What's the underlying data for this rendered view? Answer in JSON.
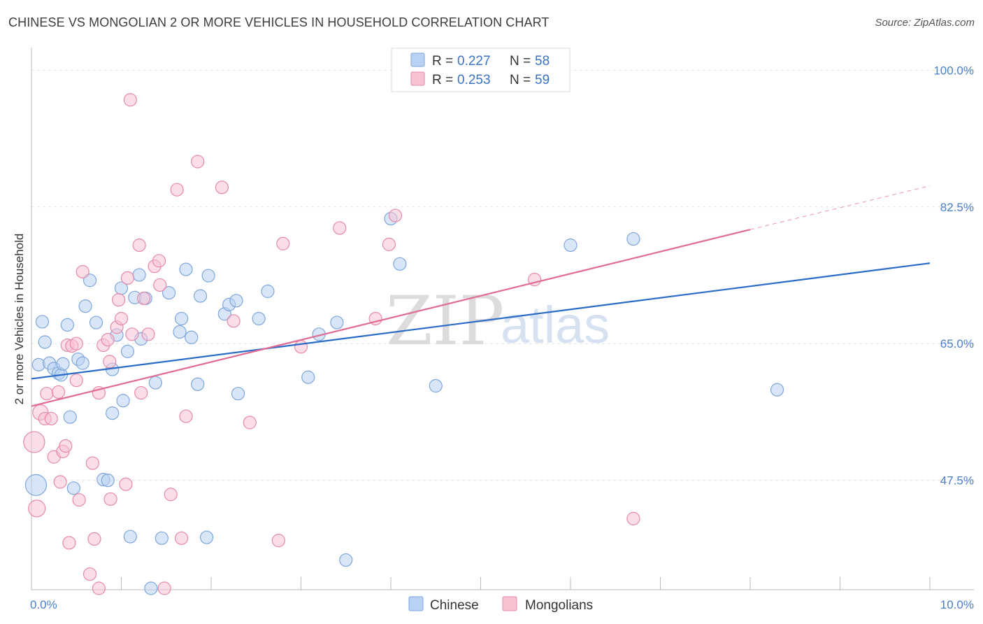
{
  "title": "CHINESE VS MONGOLIAN 2 OR MORE VEHICLES IN HOUSEHOLD CORRELATION CHART",
  "source": "Source: ZipAtlas.com",
  "watermark": {
    "zip": "ZIP",
    "atlas": "atlas"
  },
  "colors": {
    "chinese_fill": "#b9d1f2",
    "chinese_stroke": "#7ea6dc",
    "chinese_line": "#2b6bc8",
    "mongolian_fill": "#f7c3d3",
    "mongolian_stroke": "#e58aa8",
    "mongolian_line": "#e06b93",
    "grid": "#e3e3e3",
    "axis": "#bbbbbb"
  },
  "legend": {
    "rows": [
      {
        "r_label": "R = ",
        "r_value": "0.227",
        "n_label": "N = ",
        "n_value": "58"
      },
      {
        "r_label": "R = ",
        "r_value": "0.253",
        "n_label": "N = ",
        "n_value": "59"
      }
    ]
  },
  "chart_data": {
    "type": "scatter",
    "title": "CHINESE VS MONGOLIAN 2 OR MORE VEHICLES IN HOUSEHOLD CORRELATION CHART",
    "xlabel": "",
    "ylabel": "2 or more Vehicles in Household",
    "xlim": [
      0,
      10
    ],
    "ylim": [
      33.5,
      102
    ],
    "x_tick_labels": [
      "0.0%",
      "10.0%"
    ],
    "y_ticks": [
      100,
      82.5,
      65,
      47.5
    ],
    "y_tick_labels": [
      "100.0%",
      "82.5%",
      "65.0%",
      "47.5%"
    ],
    "grid": true,
    "legend_position": "top-center",
    "series": [
      {
        "name": "Chinese",
        "r": 0.227,
        "n": 58,
        "trend": {
          "x": [
            0,
            10
          ],
          "y": [
            60.5,
            75.3
          ]
        },
        "points": [
          [
            0.05,
            46.9,
            15
          ],
          [
            0.08,
            62.3,
            9
          ],
          [
            0.12,
            67.8,
            9
          ],
          [
            0.15,
            65.2,
            9
          ],
          [
            0.2,
            62.5,
            9
          ],
          [
            0.25,
            61.8,
            9
          ],
          [
            0.3,
            61.2,
            9
          ],
          [
            0.33,
            61.0,
            9
          ],
          [
            0.35,
            62.4,
            9
          ],
          [
            0.4,
            67.4,
            9
          ],
          [
            0.43,
            55.6,
            9
          ],
          [
            0.47,
            46.5,
            9
          ],
          [
            0.52,
            63.0,
            9
          ],
          [
            0.57,
            62.5,
            9
          ],
          [
            0.6,
            69.8,
            9
          ],
          [
            0.65,
            73.1,
            9
          ],
          [
            0.72,
            67.7,
            9
          ],
          [
            0.8,
            47.6,
            9
          ],
          [
            0.85,
            47.5,
            9
          ],
          [
            0.9,
            56.1,
            9
          ],
          [
            0.9,
            61.7,
            9
          ],
          [
            0.95,
            66.1,
            9
          ],
          [
            1.0,
            72.1,
            9
          ],
          [
            1.02,
            57.7,
            9
          ],
          [
            1.07,
            64.0,
            9
          ],
          [
            1.1,
            40.3,
            9
          ],
          [
            1.15,
            70.9,
            9
          ],
          [
            1.2,
            73.8,
            9
          ],
          [
            1.22,
            65.6,
            9
          ],
          [
            1.27,
            70.8,
            9
          ],
          [
            1.33,
            31.6,
            9
          ],
          [
            1.38,
            60.0,
            9
          ],
          [
            1.45,
            40.1,
            9
          ],
          [
            1.53,
            71.5,
            9
          ],
          [
            1.65,
            66.5,
            9
          ],
          [
            1.67,
            68.2,
            9
          ],
          [
            1.72,
            74.5,
            9
          ],
          [
            1.78,
            65.8,
            9
          ],
          [
            1.85,
            59.8,
            9
          ],
          [
            1.88,
            71.1,
            9
          ],
          [
            1.95,
            40.2,
            9
          ],
          [
            1.97,
            73.7,
            9
          ],
          [
            2.15,
            68.8,
            9
          ],
          [
            2.2,
            70.0,
            9
          ],
          [
            2.28,
            70.5,
            9
          ],
          [
            2.3,
            58.6,
            9
          ],
          [
            2.53,
            68.2,
            9
          ],
          [
            2.63,
            71.7,
            9
          ],
          [
            3.08,
            60.7,
            9
          ],
          [
            3.2,
            66.2,
            9
          ],
          [
            3.4,
            67.7,
            9
          ],
          [
            3.5,
            37.3,
            9
          ],
          [
            4.0,
            81.0,
            9
          ],
          [
            4.1,
            75.2,
            9
          ],
          [
            4.5,
            59.6,
            9
          ],
          [
            6.0,
            77.6,
            9
          ],
          [
            6.7,
            78.4,
            9
          ],
          [
            8.3,
            59.1,
            9
          ]
        ]
      },
      {
        "name": "Mongolians",
        "r": 0.253,
        "n": 59,
        "trend": {
          "x": [
            0,
            8.0
          ],
          "y": [
            57.0,
            79.6
          ]
        },
        "trend_dashed": {
          "x": [
            8.0,
            10
          ],
          "y": [
            79.6,
            85.2
          ]
        },
        "points": [
          [
            0.03,
            52.4,
            15
          ],
          [
            0.06,
            43.9,
            12
          ],
          [
            0.1,
            56.2,
            11
          ],
          [
            0.15,
            55.4,
            9
          ],
          [
            0.17,
            58.6,
            9
          ],
          [
            0.22,
            55.4,
            9
          ],
          [
            0.25,
            50.5,
            9
          ],
          [
            0.3,
            58.8,
            9
          ],
          [
            0.32,
            47.3,
            9
          ],
          [
            0.35,
            51.2,
            9
          ],
          [
            0.38,
            51.9,
            9
          ],
          [
            0.4,
            64.8,
            9
          ],
          [
            0.42,
            39.5,
            9
          ],
          [
            0.45,
            64.7,
            9
          ],
          [
            0.5,
            65.0,
            9
          ],
          [
            0.5,
            60.3,
            9
          ],
          [
            0.53,
            45.0,
            9
          ],
          [
            0.57,
            74.2,
            9
          ],
          [
            0.65,
            35.5,
            9
          ],
          [
            0.68,
            49.7,
            9
          ],
          [
            0.7,
            40.0,
            9
          ],
          [
            0.75,
            30.5,
            9
          ],
          [
            0.75,
            58.7,
            9
          ],
          [
            0.8,
            64.8,
            9
          ],
          [
            0.85,
            65.5,
            9
          ],
          [
            0.87,
            62.7,
            9
          ],
          [
            0.88,
            45.1,
            9
          ],
          [
            0.95,
            67.1,
            9
          ],
          [
            0.97,
            70.6,
            9
          ],
          [
            1.0,
            68.2,
            9
          ],
          [
            1.05,
            47.0,
            9
          ],
          [
            1.07,
            73.4,
            9
          ],
          [
            1.1,
            96.2,
            9
          ],
          [
            1.12,
            66.2,
            9
          ],
          [
            1.2,
            77.6,
            9
          ],
          [
            1.22,
            58.7,
            9
          ],
          [
            1.25,
            70.8,
            9
          ],
          [
            1.3,
            66.2,
            9
          ],
          [
            1.37,
            74.9,
            9
          ],
          [
            1.42,
            75.6,
            9
          ],
          [
            1.43,
            72.5,
            9
          ],
          [
            1.48,
            33.0,
            9
          ],
          [
            1.55,
            45.7,
            9
          ],
          [
            1.62,
            84.7,
            9
          ],
          [
            1.67,
            40.1,
            9
          ],
          [
            1.72,
            55.7,
            9
          ],
          [
            1.85,
            88.3,
            9
          ],
          [
            2.12,
            85.0,
            9
          ],
          [
            2.25,
            67.9,
            9
          ],
          [
            2.43,
            54.9,
            9
          ],
          [
            2.75,
            39.8,
            9
          ],
          [
            2.8,
            77.8,
            9
          ],
          [
            3.0,
            64.6,
            9
          ],
          [
            3.43,
            79.8,
            9
          ],
          [
            3.83,
            68.2,
            9
          ],
          [
            3.98,
            77.7,
            9
          ],
          [
            4.05,
            81.4,
            9
          ],
          [
            5.6,
            73.2,
            9
          ],
          [
            6.7,
            42.6,
            9
          ]
        ]
      }
    ]
  }
}
